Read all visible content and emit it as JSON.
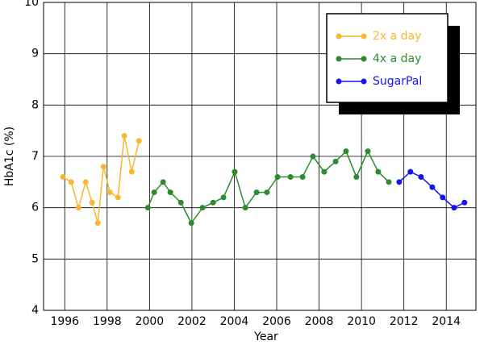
{
  "chart_data": {
    "type": "line",
    "xlabel": "Year",
    "ylabel": "HbA1c (%)",
    "xlim": [
      1995,
      2015.4
    ],
    "ylim": [
      4,
      10
    ],
    "xticks": [
      1996,
      1998,
      2000,
      2002,
      2004,
      2006,
      2008,
      2010,
      2012,
      2014
    ],
    "yticks": [
      4,
      5,
      6,
      7,
      8,
      9,
      10
    ],
    "grid": true,
    "legend": "upper right",
    "series": [
      {
        "name": "2x a day",
        "color": "#f7b731",
        "x": [
          1995.92,
          1996.3,
          1996.65,
          1996.99,
          1997.29,
          1997.56,
          1997.83,
          1998.13,
          1998.51,
          1998.81,
          1999.16,
          1999.5
        ],
        "values": [
          6.6,
          6.5,
          6.0,
          6.5,
          6.1,
          5.7,
          6.8,
          6.3,
          6.2,
          7.4,
          6.7,
          7.3
        ]
      },
      {
        "name": "4x a day",
        "color": "#2e8b2e",
        "x": [
          1999.92,
          2000.22,
          2000.64,
          2000.98,
          2001.48,
          2001.97,
          2002.5,
          2003.0,
          2003.49,
          2004.02,
          2004.52,
          2005.05,
          2005.54,
          2006.04,
          2006.65,
          2007.22,
          2007.71,
          2008.24,
          2008.78,
          2009.27,
          2009.76,
          2010.3,
          2010.79,
          2011.29
        ],
        "values": [
          6.0,
          6.3,
          6.5,
          6.3,
          6.1,
          5.7,
          6.0,
          6.1,
          6.2,
          6.7,
          6.0,
          6.3,
          6.3,
          6.6,
          6.6,
          6.6,
          7.0,
          6.7,
          6.9,
          7.1,
          6.6,
          7.1,
          6.7,
          6.5
        ]
      },
      {
        "name": "SugarPal",
        "color": "#1414f0",
        "x": [
          2011.78,
          2012.31,
          2012.81,
          2013.34,
          2013.83,
          2014.37,
          2014.86
        ],
        "values": [
          6.5,
          6.7,
          6.6,
          6.4,
          6.2,
          6.0,
          6.1
        ]
      }
    ]
  }
}
